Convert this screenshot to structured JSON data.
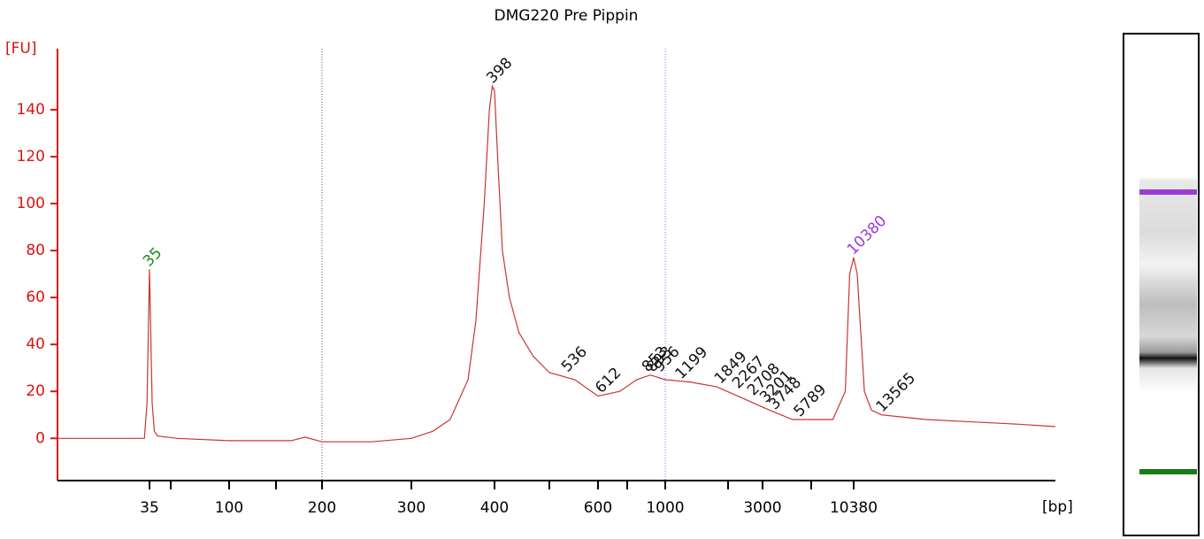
{
  "chart_data": {
    "type": "line",
    "title": "DMG220 Pre Pippin",
    "y_label": "[FU]",
    "x_label": "[bp]",
    "xlim": [
      7,
      67000
    ],
    "xticks": [
      35,
      100,
      200,
      300,
      400,
      600,
      1000,
      3000,
      10380
    ],
    "xminorticks": [
      50,
      150,
      500,
      700,
      2000,
      7000
    ],
    "ylim": [
      -18,
      166
    ],
    "yticks": [
      0,
      20,
      40,
      60,
      80,
      100,
      120,
      140
    ],
    "axis_color": "#dd1111",
    "vlines": [
      {
        "x": 200,
        "color": "#555555"
      },
      {
        "x": 1000,
        "color": "#7777ee"
      }
    ],
    "series": [
      {
        "name": "DMG220 Pre Pippin",
        "color": "#c8352f",
        "x": [
          7,
          32,
          33.5,
          35,
          36.6,
          38,
          40,
          54,
          100,
          165,
          180,
          200,
          250,
          300,
          323,
          343,
          365,
          375,
          386,
          393,
          397,
          400,
          405,
          413,
          425,
          442,
          468,
          500,
          550,
          600,
          673,
          765,
          870,
          1000,
          1314,
          1760,
          2390,
          3390,
          5050,
          8550,
          9600,
          10000,
          10380,
          10725,
          11460,
          12230,
          13400,
          20200,
          31200,
          47600,
          67000
        ],
        "values": [
          0,
          0,
          15,
          72,
          15,
          3,
          1,
          0,
          -1,
          -1,
          0.5,
          -1.5,
          -1.5,
          0,
          3,
          8,
          25,
          50,
          100,
          140,
          150,
          148,
          120,
          80,
          60,
          45,
          35,
          28,
          25,
          18,
          20,
          25,
          27,
          25,
          24,
          22,
          17,
          12,
          8,
          8,
          20,
          70,
          77,
          70,
          20,
          12,
          10,
          8,
          7,
          6,
          5
        ]
      }
    ],
    "peaks": [
      {
        "x": 35,
        "y": 72,
        "color": "#1a8a1a"
      },
      {
        "x": 398,
        "y": 150,
        "color": "#111111"
      },
      {
        "x": 536,
        "y": 27,
        "color": "#111111"
      },
      {
        "x": 612,
        "y": 18,
        "color": "#111111"
      },
      {
        "x": 853,
        "y": 27,
        "color": "#111111"
      },
      {
        "x": 893,
        "y": 27,
        "color": "#111111"
      },
      {
        "x": 956,
        "y": 27,
        "color": "#111111"
      },
      {
        "x": 1199,
        "y": 24,
        "color": "#111111"
      },
      {
        "x": 1849,
        "y": 22,
        "color": "#111111"
      },
      {
        "x": 2267,
        "y": 20,
        "color": "#111111"
      },
      {
        "x": 2708,
        "y": 17,
        "color": "#111111"
      },
      {
        "x": 3201,
        "y": 14,
        "color": "#111111"
      },
      {
        "x": 3748,
        "y": 11,
        "color": "#111111"
      },
      {
        "x": 5789,
        "y": 8,
        "color": "#111111"
      },
      {
        "x": 10380,
        "y": 77,
        "color": "#9b3bd8"
      },
      {
        "x": 13565,
        "y": 10,
        "color": "#111111"
      }
    ]
  }
}
